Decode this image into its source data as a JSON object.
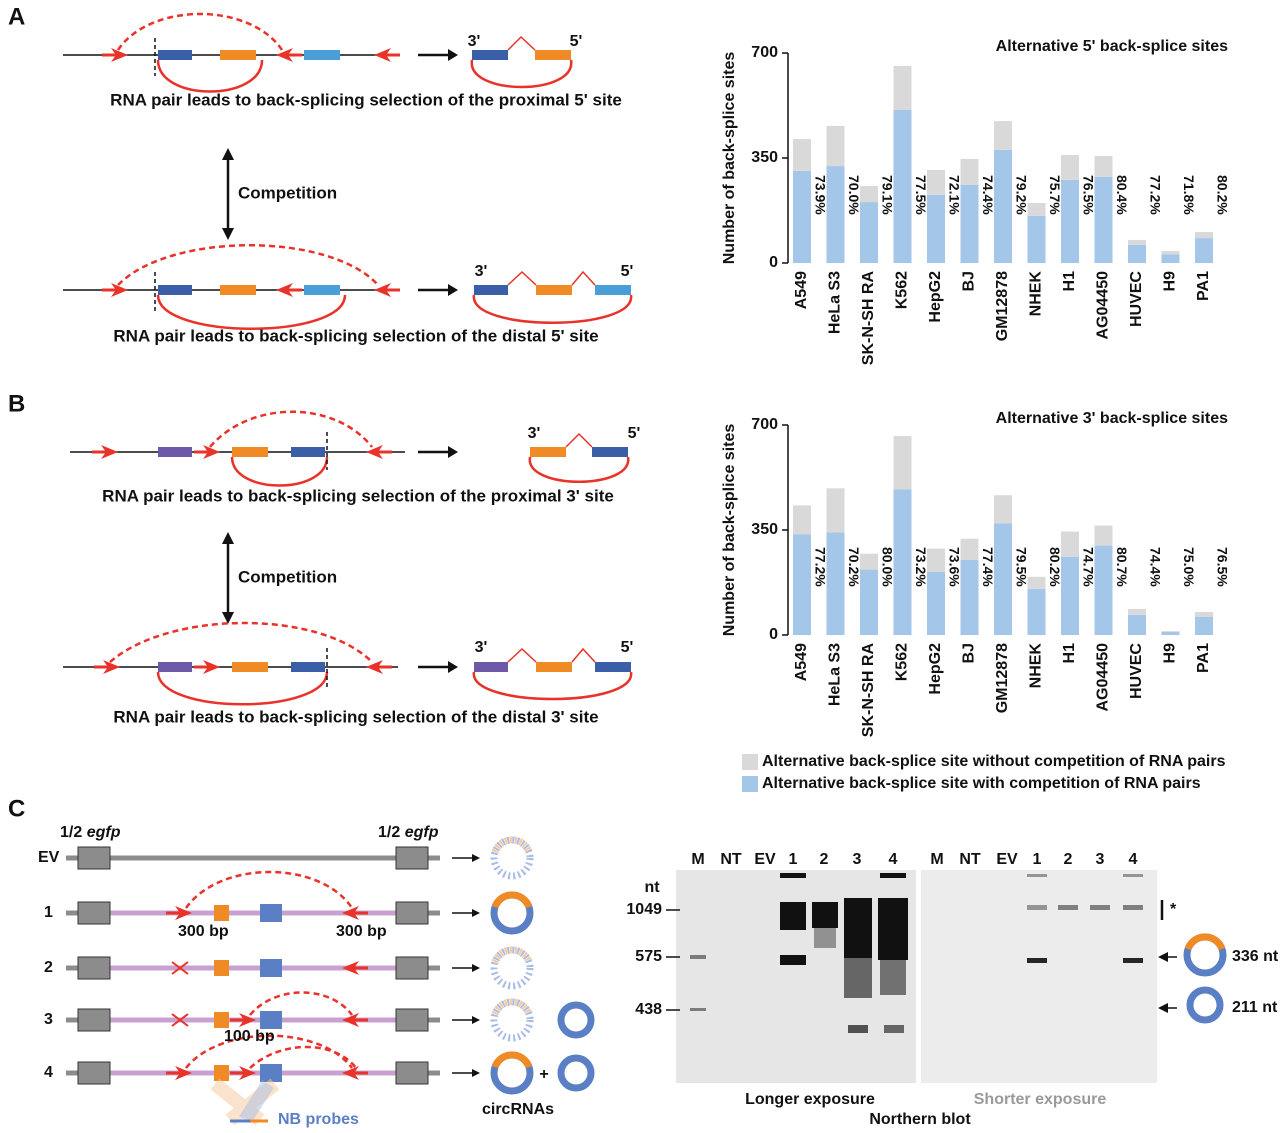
{
  "panels": {
    "a": "A",
    "b": "B",
    "c": "C"
  },
  "panel_a": {
    "top_ends": [
      "3'",
      "5'"
    ],
    "top_caption": "RNA pair leads to back-splicing selection of the proximal 5' site",
    "competition": "Competition",
    "bottom_ends": [
      "3'",
      "5'"
    ],
    "bottom_caption": "RNA pair leads to back-splicing selection of the distal 5' site"
  },
  "panel_b": {
    "top_ends": [
      "3'",
      "5'"
    ],
    "top_caption": "RNA pair leads to back-splicing selection of the proximal 3' site",
    "competition": "Competition",
    "bottom_ends": [
      "3'",
      "5'"
    ],
    "bottom_caption": "RNA pair leads to back-splicing selection of the distal 3' site"
  },
  "chart_data": [
    {
      "type": "bar",
      "stacked": true,
      "title": "Alternative 5' back-splice sites",
      "y_label": "Number of back-splice sites",
      "categories": [
        "A549",
        "HeLa S3",
        "SK-N-SH RA",
        "K562",
        "HepG2",
        "BJ",
        "GM12878",
        "NHEK",
        "H1",
        "AG04450",
        "HUVEC",
        "H9",
        "PA1"
      ],
      "series": [
        {
          "color": "#d9d9d9",
          "values": [
            106,
            134,
            54,
            147,
            83,
            87,
            96,
            43,
            83,
            70,
            17,
            11,
            20
          ]
        },
        {
          "color": "#a4c6e8",
          "values": [
            307,
            323,
            203,
            510,
            227,
            260,
            377,
            157,
            277,
            287,
            60,
            29,
            83
          ]
        }
      ],
      "percent_labels": [
        "73.9%",
        "70.0%",
        "79.1%",
        "77.5%",
        "72.1%",
        "74.4%",
        "79.2%",
        "75.7%",
        "76.5%",
        "80.4%",
        "77.2%",
        "71.8%",
        "80.2%"
      ],
      "ylim": [
        0,
        700
      ],
      "yticks": [
        0,
        350,
        700
      ]
    },
    {
      "type": "bar",
      "stacked": true,
      "title": "Alternative 3' back-splice sites",
      "y_label": "Number of back-splice sites",
      "categories": [
        "A549",
        "HeLa S3",
        "SK-N-SH RA",
        "K562",
        "HepG2",
        "BJ",
        "GM12878",
        "NHEK",
        "H1",
        "AG04450",
        "HUVEC",
        "H9",
        "PA1"
      ],
      "series": [
        {
          "name": "Alternative back-splice site without competition of RNA pairs",
          "color": "#d9d9d9",
          "values": [
            97,
            147,
            53,
            177,
            77,
            70,
            94,
            40,
            84,
            67,
            20,
            3,
            17
          ]
        },
        {
          "name": "Alternative back-splice site with competition of RNA pairs",
          "color": "#a4c6e8",
          "values": [
            335,
            342,
            218,
            486,
            211,
            251,
            372,
            154,
            261,
            298,
            67,
            10,
            60
          ]
        }
      ],
      "percent_labels": [
        "77.2%",
        "70.2%",
        "80.0%",
        "73.2%",
        "73.6%",
        "77.4%",
        "79.5%",
        "80.2%",
        "74.7%",
        "80.7%",
        "74.4%",
        "75.0%",
        "76.5%"
      ],
      "ylim": [
        0,
        700
      ],
      "yticks": [
        0,
        350,
        700
      ]
    }
  ],
  "panel_c": {
    "gene_half": [
      "1/2",
      "1/2"
    ],
    "gene": [
      "egfp",
      "egfp"
    ],
    "rows": [
      "EV",
      "1",
      "2",
      "3",
      "4"
    ],
    "spacers": [
      "300 bp",
      "300 bp",
      "100 bp"
    ],
    "plus": "+",
    "probes": "NB probes",
    "products": "circRNAs"
  },
  "northern_blot": {
    "lanes_longer": [
      "M",
      "NT",
      "EV",
      "1",
      "2",
      "3",
      "4"
    ],
    "lanes_shorter": [
      "M",
      "NT",
      "EV",
      "1",
      "2",
      "3",
      "4"
    ],
    "size_unit": "nt",
    "markers": [
      "1049",
      "575",
      "438"
    ],
    "star": "*",
    "products": [
      "336 nt",
      "211 nt"
    ],
    "longer": "Longer exposure",
    "shorter": "Shorter exposure",
    "title": "Northern blot"
  }
}
